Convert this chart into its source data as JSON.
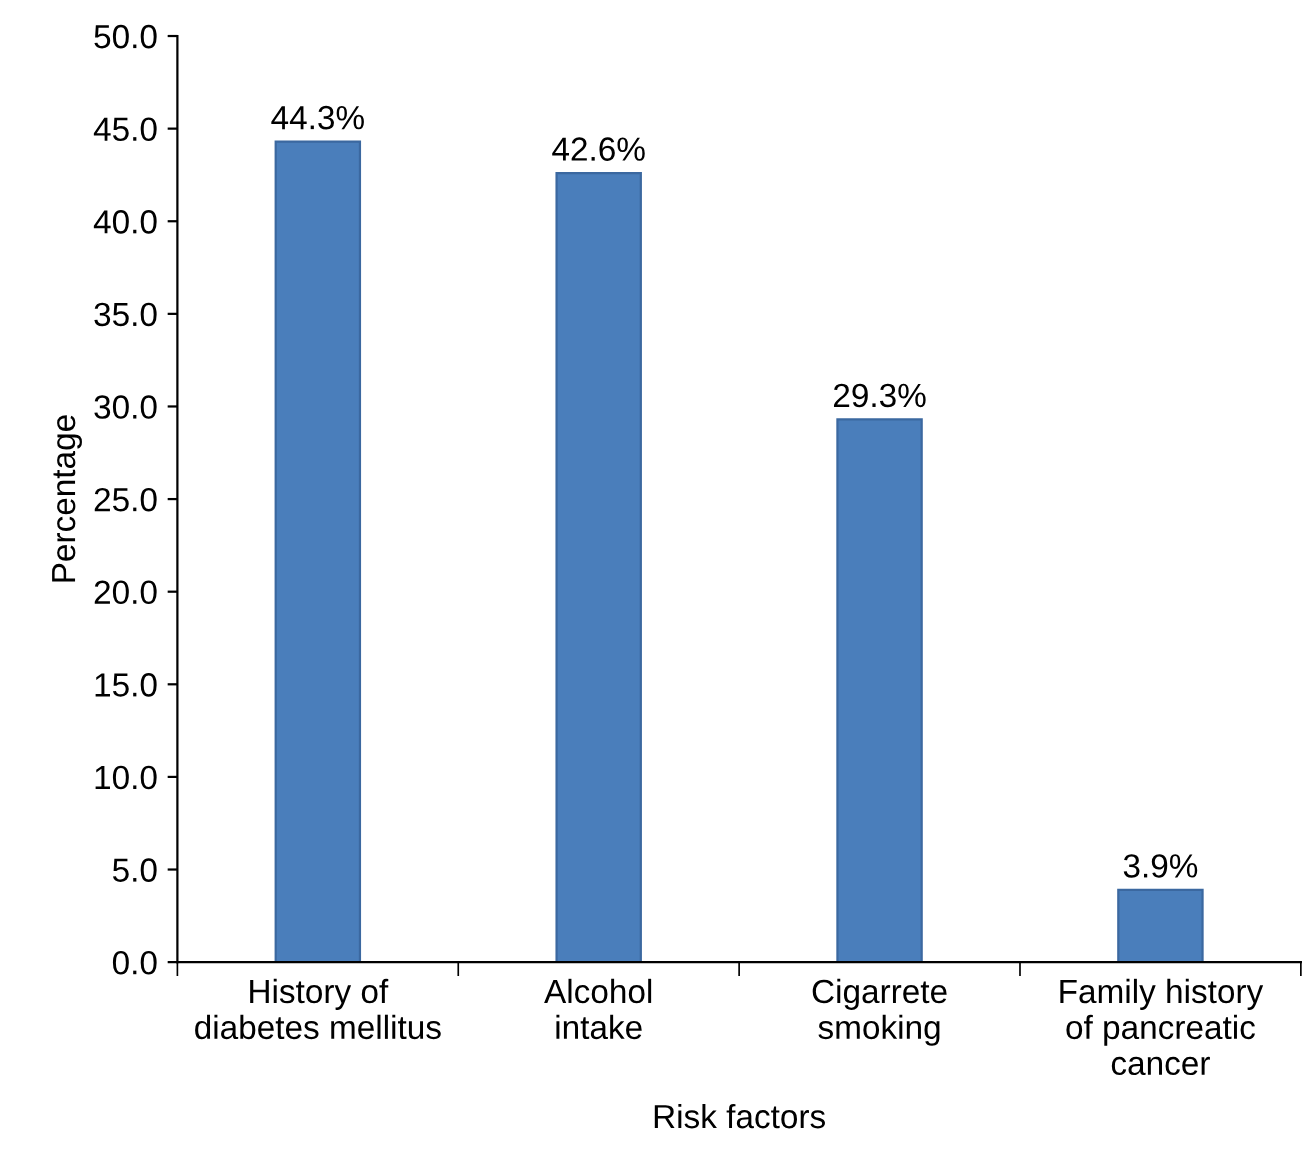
{
  "chart_data": {
    "type": "bar",
    "xlabel": "Risk factors",
    "ylabel": "Percentage",
    "categories": [
      "History of\ndiabetes mellitus",
      "Alcohol\nintake",
      "Cigarrete\nsmoking",
      "Family history\nof pancreatic\ncancer"
    ],
    "values": [
      44.3,
      42.6,
      29.3,
      3.9
    ],
    "value_labels": [
      "44.3%",
      "42.6%",
      "29.3%",
      "3.9%"
    ],
    "color": "#4a7ebb",
    "ylim": [
      0,
      50
    ],
    "yticks": [
      {
        "value": 0,
        "label": "0.0"
      },
      {
        "value": 5,
        "label": "5.0"
      },
      {
        "value": 10,
        "label": "10.0"
      },
      {
        "value": 15,
        "label": "15.0"
      },
      {
        "value": 20,
        "label": "20.0"
      },
      {
        "value": 25,
        "label": "25.0"
      },
      {
        "value": 30,
        "label": "30.0"
      },
      {
        "value": 35,
        "label": "35.0"
      },
      {
        "value": 40,
        "label": "40.0"
      },
      {
        "value": 45,
        "label": "45.0"
      },
      {
        "value": 50,
        "label": "50.0"
      }
    ],
    "grid": false,
    "legend": false
  }
}
